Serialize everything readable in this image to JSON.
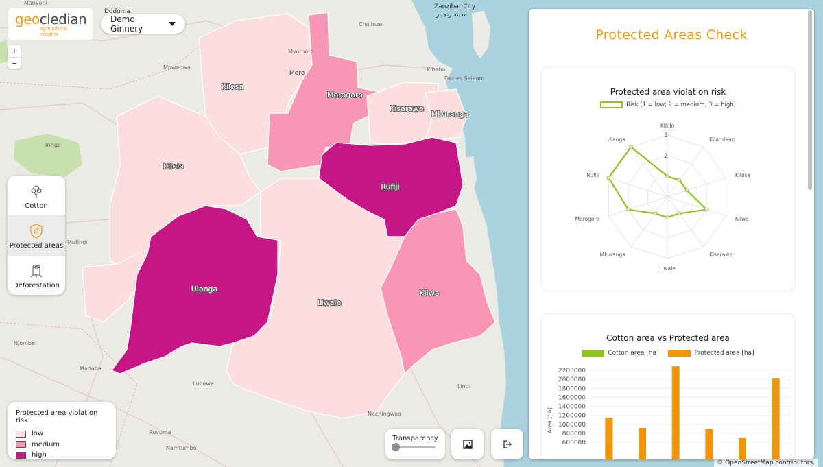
{
  "logo": {
    "brand_part1": "geo",
    "brand_part2": "cledian",
    "tagline": "agricultural insights"
  },
  "ginnery_select": {
    "value": "Demo Ginnery"
  },
  "zoom": {
    "in": "+",
    "out": "−"
  },
  "layers": [
    {
      "label": "Cotton",
      "icon": "cotton-plant-icon",
      "active": false
    },
    {
      "label": "Protected areas",
      "icon": "shield-leaf-icon",
      "active": true
    },
    {
      "label": "Deforestation",
      "icon": "tree-stump-icon",
      "active": false
    }
  ],
  "legend": {
    "title": "Protected area violation risk",
    "items": [
      {
        "label": "low",
        "color": "#fcdede"
      },
      {
        "label": "medium",
        "color": "#f797b5"
      },
      {
        "label": "high",
        "color": "#c41785"
      }
    ]
  },
  "map": {
    "regions": [
      {
        "name": "Kilosa",
        "risk": "low"
      },
      {
        "name": "Morogoro",
        "risk": "medium"
      },
      {
        "name": "Kisarawe",
        "risk": "low"
      },
      {
        "name": "Mkuranga",
        "risk": "low"
      },
      {
        "name": "Kilolo",
        "risk": "low"
      },
      {
        "name": "Rufiji",
        "risk": "high"
      },
      {
        "name": "Ulanga",
        "risk": "high"
      },
      {
        "name": "Liwale",
        "risk": "low"
      },
      {
        "name": "Kilwa",
        "risk": "medium"
      }
    ],
    "places": [
      "Dodoma",
      "Zanzibar City",
      "مدينة زنجبار",
      "Manyoni",
      "Chalinze",
      "Mvomero",
      "Mpwapwa",
      "Kibaha",
      "Dar es Salaam",
      "Iringa",
      "Mufindi",
      "Njombe",
      "Madaba",
      "Ludewa",
      "Ruvuma",
      "Namtumbo",
      "Nachingwea",
      "Lindi",
      "Moro"
    ]
  },
  "transparency": {
    "label": "Transparency",
    "value": 0
  },
  "attribution": "© OpenStreetMap contributors.",
  "panel": {
    "title": "Protected Areas Check",
    "radar": {
      "title": "Protected area violation risk",
      "legend": "Risk (1 = low; 2 = medium; 3 = high)",
      "series_color": "#8dc21f"
    },
    "bar": {
      "title": "Cotton area vs Protected area",
      "series": [
        {
          "name": "Cotton area [ha]",
          "color": "#8dc21f"
        },
        {
          "name": "Protected area [ha]",
          "color": "#f0940a"
        }
      ],
      "ylabel": "Area [ha]"
    }
  },
  "chart_data": [
    {
      "type": "radar",
      "title": "Protected area violation risk",
      "categories": [
        "Kilolo",
        "Kilombero",
        "Kilosa",
        "Kilwa",
        "Kisarawe",
        "Liwale",
        "Mkuranga",
        "Morogoro",
        "Rufiji",
        "Ulanga"
      ],
      "series": [
        {
          "name": "Risk (1 = low; 2 = medium; 3 = high)",
          "values": [
            1,
            1,
            1,
            2,
            1,
            1,
            1,
            2,
            3,
            3
          ]
        }
      ],
      "rmax": 3,
      "ticks": [
        1,
        2,
        3
      ],
      "tick_labels": [
        "2",
        "3"
      ]
    },
    {
      "type": "bar",
      "title": "Cotton area vs Protected area",
      "ylabel": "Area [ha]",
      "categories": [
        "",
        "",
        "",
        "",
        "",
        ""
      ],
      "series": [
        {
          "name": "Cotton area [ha]",
          "values": [
            0,
            0,
            0,
            0,
            0,
            0
          ]
        },
        {
          "name": "Protected area [ha]",
          "values": [
            1150000,
            920000,
            2290000,
            900000,
            700000,
            2030000
          ]
        }
      ],
      "yticks": [
        600000,
        800000,
        1000000,
        1200000,
        1400000,
        1600000,
        1800000,
        2000000,
        2200000
      ],
      "ytick_labels": [
        "600000",
        "800000",
        "1000000",
        "1200000",
        "1400000",
        "1600000",
        "1800000",
        "2000000",
        "2200000"
      ]
    }
  ]
}
